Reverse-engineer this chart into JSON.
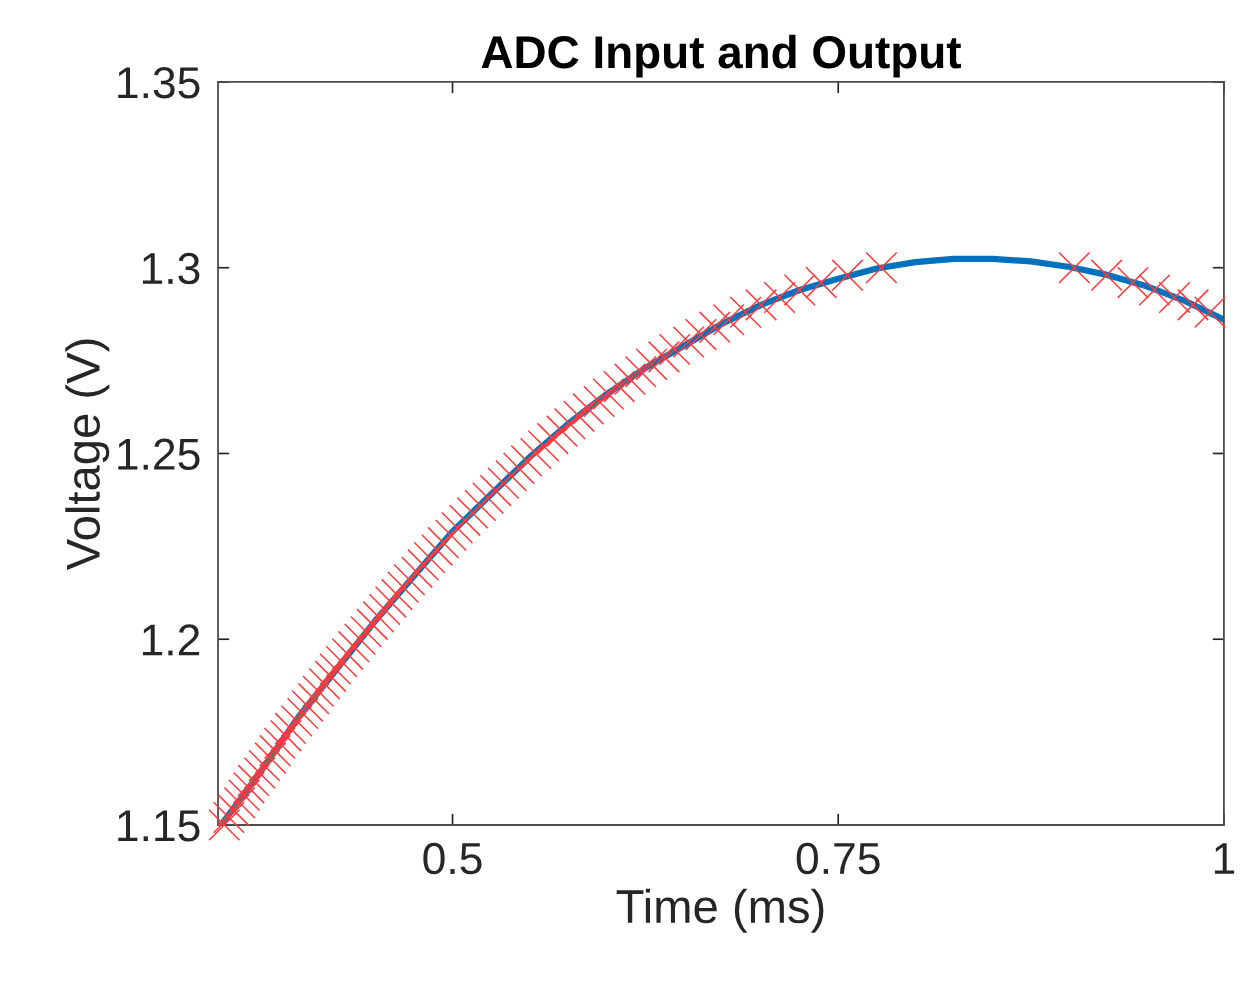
{
  "chart_data": {
    "type": "line",
    "title": "ADC Input and Output",
    "xlabel": "Time (ms)",
    "ylabel": "Voltage (V)",
    "xlim": [
      0.348,
      1
    ],
    "ylim": [
      1.15,
      1.35
    ],
    "xticks": [
      0.5,
      0.75,
      1
    ],
    "yticks": [
      1.15,
      1.2,
      1.25,
      1.3,
      1.35
    ],
    "grid": false,
    "legend": false,
    "series": [
      {
        "color": "#0072bd",
        "marker": "none",
        "x": [
          0.35,
          0.375,
          0.4,
          0.425,
          0.45,
          0.475,
          0.5,
          0.525,
          0.55,
          0.575,
          0.6,
          0.625,
          0.65,
          0.675,
          0.7,
          0.725,
          0.75,
          0.775,
          0.8,
          0.825,
          0.85,
          0.875,
          0.9,
          0.925,
          0.95,
          0.975,
          1.0
        ],
        "values": [
          1.15,
          1.164,
          1.179,
          1.192,
          1.205,
          1.217,
          1.229,
          1.239,
          1.249,
          1.258,
          1.266,
          1.273,
          1.279,
          1.285,
          1.29,
          1.294,
          1.297,
          1.2998,
          1.3015,
          1.3024,
          1.3024,
          1.3017,
          1.3002,
          1.298,
          1.295,
          1.291,
          1.286
        ]
      },
      {
        "type": "scatter",
        "color": "#ff3b3b",
        "marker": "cross",
        "x": [
          0.352,
          0.355,
          0.358,
          0.362,
          0.365,
          0.368,
          0.371,
          0.375,
          0.378,
          0.382,
          0.385,
          0.388,
          0.392,
          0.395,
          0.399,
          0.403,
          0.406,
          0.41,
          0.413,
          0.417,
          0.421,
          0.424,
          0.428,
          0.432,
          0.436,
          0.44,
          0.444,
          0.448,
          0.452,
          0.456,
          0.46,
          0.464,
          0.468,
          0.472,
          0.477,
          0.481,
          0.485,
          0.49,
          0.494,
          0.499,
          0.503,
          0.508,
          0.513,
          0.518,
          0.523,
          0.528,
          0.533,
          0.538,
          0.543,
          0.548,
          0.554,
          0.559,
          0.565,
          0.571,
          0.576,
          0.582,
          0.588,
          0.595,
          0.601,
          0.608,
          0.615,
          0.622,
          0.629,
          0.637,
          0.644,
          0.653,
          0.661,
          0.67,
          0.679,
          0.69,
          0.7,
          0.712,
          0.725,
          0.739,
          0.756,
          0.778,
          0.903,
          0.924,
          0.941,
          0.955,
          0.968,
          0.98,
          0.991
        ],
        "values": [
          1.15,
          1.152,
          1.154,
          1.156,
          1.158,
          1.16,
          1.162,
          1.164,
          1.166,
          1.168,
          1.17,
          1.172,
          1.174,
          1.176,
          1.178,
          1.18,
          1.182,
          1.184,
          1.186,
          1.188,
          1.19,
          1.192,
          1.194,
          1.196,
          1.198,
          1.2,
          1.202,
          1.204,
          1.206,
          1.208,
          1.21,
          1.212,
          1.214,
          1.216,
          1.218,
          1.22,
          1.222,
          1.224,
          1.226,
          1.228,
          1.23,
          1.232,
          1.234,
          1.236,
          1.238,
          1.24,
          1.242,
          1.244,
          1.246,
          1.248,
          1.25,
          1.252,
          1.254,
          1.256,
          1.258,
          1.26,
          1.262,
          1.264,
          1.266,
          1.268,
          1.27,
          1.272,
          1.274,
          1.276,
          1.278,
          1.28,
          1.282,
          1.284,
          1.286,
          1.288,
          1.29,
          1.292,
          1.294,
          1.296,
          1.298,
          1.3,
          1.3,
          1.298,
          1.296,
          1.294,
          1.292,
          1.29,
          1.288
        ]
      }
    ]
  }
}
